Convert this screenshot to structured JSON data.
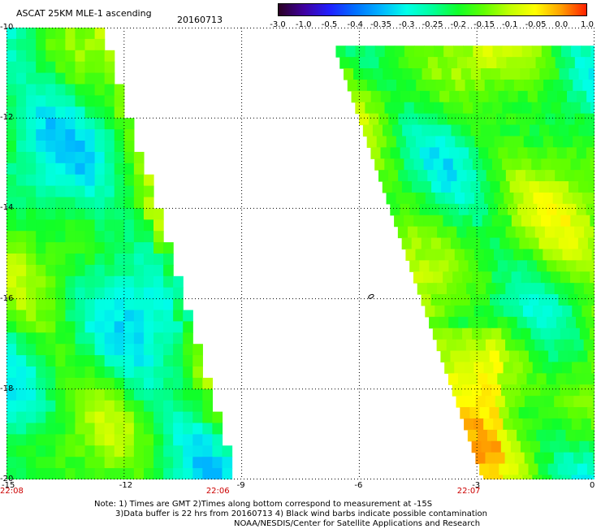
{
  "header": {
    "title": "ASCAT 25KM MLE-1 ascending",
    "date": "20160713"
  },
  "colorbar": {
    "tick_labels": [
      "-3.0",
      "-1.0",
      "-0.5",
      "-0.4",
      "-0.35",
      "-0.3",
      "-0.25",
      "-0.2",
      "-0.15",
      "-0.1",
      "-0.05",
      "0.0",
      "1.0"
    ],
    "colors": [
      "#2a0022",
      "#3f00a0",
      "#2020ff",
      "#0070ff",
      "#00b4ff",
      "#00ffe8",
      "#00ff9a",
      "#10ff28",
      "#60ff00",
      "#c0ff00",
      "#ffff00",
      "#ffa000",
      "#ff2000"
    ]
  },
  "map": {
    "x_range": [
      -15,
      0
    ],
    "y_range": [
      -20,
      -10
    ],
    "x_ticks": [
      -15,
      -12,
      -9,
      -6,
      -3,
      0
    ],
    "y_ticks": [
      -10,
      -12,
      -14,
      -16,
      -18,
      -20
    ],
    "x_tick_labels": [
      "-15",
      "-12",
      "-9",
      "-6",
      "-3",
      "0"
    ],
    "y_tick_labels": [
      "-10",
      "-12",
      "-14",
      "-16",
      "-18",
      "-20"
    ],
    "grid": true,
    "island_marker_lon": -5.7,
    "island_marker_lat": -15.95,
    "time_labels": [
      {
        "text": "22:08",
        "lon": -15.0
      },
      {
        "text": "22:06",
        "lon": -9.7
      },
      {
        "text": "22:07",
        "lon": -3.3
      }
    ],
    "swaths": [
      {
        "name": "west",
        "west_lon": -15.0,
        "edge_north_lon": -12.6,
        "edge_south_lon": -9.2,
        "lat_top": -10,
        "lat_bottom": -20,
        "base_value": -0.22
      },
      {
        "name": "east",
        "west_lon_north": -6.6,
        "west_lon_south": -2.8,
        "east_lon": 0.0,
        "lat_top": -10.4,
        "lat_bottom": -20,
        "base_value": -0.18,
        "warm_zone": {
          "lon": -2.6,
          "lat": -17.3,
          "value": -0.03
        }
      }
    ]
  },
  "notes": {
    "line1": "Note: 1) Times are GMT 2)Times along bottom correspond to measurement at -15S",
    "line2": "3)Data buffer is 22 hrs from 20160713 4) Black wind barbs indicate possible contamination",
    "line3": "NOAA/NESDIS/Center for Satellite Applications and Research"
  },
  "style": {
    "time_label_color": "#cc0000",
    "grid_color": "#000000"
  }
}
